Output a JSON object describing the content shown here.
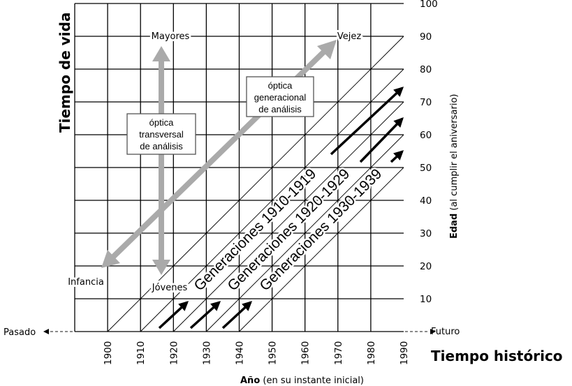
{
  "chart_data": {
    "type": "diagram",
    "title_y": "Tiempo de vida",
    "title_x": "Tiempo histórico",
    "xlabel_bold": "Año",
    "xlabel_rest": " (en su instante inicial)",
    "ylabel_bold": "Edad",
    "ylabel_rest": " (al cumplir el aniversario)",
    "x_ticks": [
      "1900",
      "1910",
      "1920",
      "1930",
      "1940",
      "1950",
      "1960",
      "1970",
      "1980",
      "1990"
    ],
    "y_ticks": [
      "10",
      "20",
      "30",
      "40",
      "50",
      "60",
      "70",
      "80",
      "90",
      "100"
    ],
    "x_range": [
      1890,
      1990
    ],
    "y_range": [
      0,
      100
    ],
    "grid_step": 10,
    "cohort_lines_start_years": [
      1900,
      1910,
      1920,
      1930,
      1940
    ],
    "past_label": "Pasado",
    "future_label": "Futuro",
    "corner_labels": {
      "mayores": "Mayores",
      "vejez": "Vejez",
      "infancia": "Infancia",
      "jovenes": "Jóvenes"
    },
    "transversal_box": [
      "óptica",
      "transversal",
      "de análisis"
    ],
    "generational_box": [
      "óptica",
      "generacional",
      "de análisis"
    ],
    "generations": [
      {
        "label": "Generaciones 1910-1919",
        "start_year": 1910
      },
      {
        "label": "Generaciones 1920-1929",
        "start_year": 1920
      },
      {
        "label": "Generaciones 1930-1939",
        "start_year": 1930
      }
    ],
    "colors": {
      "grid": "#000000",
      "optic_arrow": "#aaaaaa",
      "cohort_arrow": "#000000"
    }
  }
}
